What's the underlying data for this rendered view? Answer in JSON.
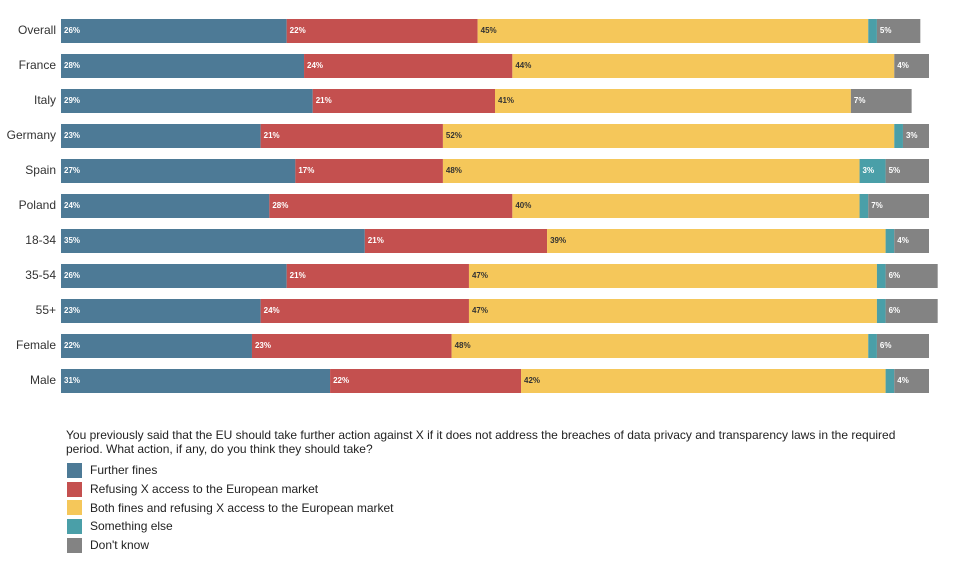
{
  "chart_data": {
    "type": "stacked_barh",
    "title": "You previously said that the EU should take further action against X if it does not address the breaches of data privacy and transparency laws in the required period. What action, if any, do you think they should take?",
    "categories": [
      "Overall",
      "France",
      "Italy",
      "Germany",
      "Spain",
      "Poland",
      "18-34",
      "35-54",
      "55+",
      "Female",
      "Male"
    ],
    "xlim": [
      0,
      100
    ],
    "series": [
      {
        "name": "Further fines",
        "color": "#4d7a96",
        "values": [
          26,
          28,
          29,
          23,
          27,
          24,
          35,
          26,
          23,
          22,
          31
        ],
        "value_labels": [
          "26%",
          "28%",
          "29%",
          "23%",
          "27%",
          "24%",
          "35%",
          "26%",
          "23%",
          "22%",
          "31%"
        ]
      },
      {
        "name": "Refusing X access to the European market",
        "color": "#c4504f",
        "values": [
          22,
          24,
          21,
          21,
          17,
          28,
          21,
          21,
          24,
          23,
          22
        ],
        "value_labels": [
          "22%",
          "24%",
          "21%",
          "21%",
          "17%",
          "28%",
          "21%",
          "21%",
          "24%",
          "23%",
          "22%"
        ]
      },
      {
        "name": "Both fines and refusing X access to the European market",
        "color": "#f5c75a",
        "values": [
          45,
          44,
          41,
          52,
          48,
          40,
          39,
          47,
          47,
          48,
          42
        ],
        "value_labels": [
          "45%",
          "44%",
          "41%",
          "52%",
          "48%",
          "40%",
          "39%",
          "47%",
          "47%",
          "48%",
          "42%"
        ]
      },
      {
        "name": "Something else",
        "color": "#4a9fa8",
        "values": [
          1,
          0,
          0,
          1,
          3,
          1,
          1,
          1,
          1,
          1,
          1
        ],
        "value_labels": [
          null,
          null,
          null,
          null,
          "3%",
          null,
          null,
          null,
          null,
          null,
          null
        ]
      },
      {
        "name": "Don't know",
        "color": "#838383",
        "values": [
          5,
          4,
          7,
          3,
          5,
          7,
          4,
          6,
          6,
          6,
          4
        ],
        "value_labels": [
          "5%",
          "4%",
          "7%",
          "3%",
          "5%",
          "7%",
          "4%",
          "6%",
          "6%",
          "6%",
          "4%"
        ]
      }
    ]
  }
}
